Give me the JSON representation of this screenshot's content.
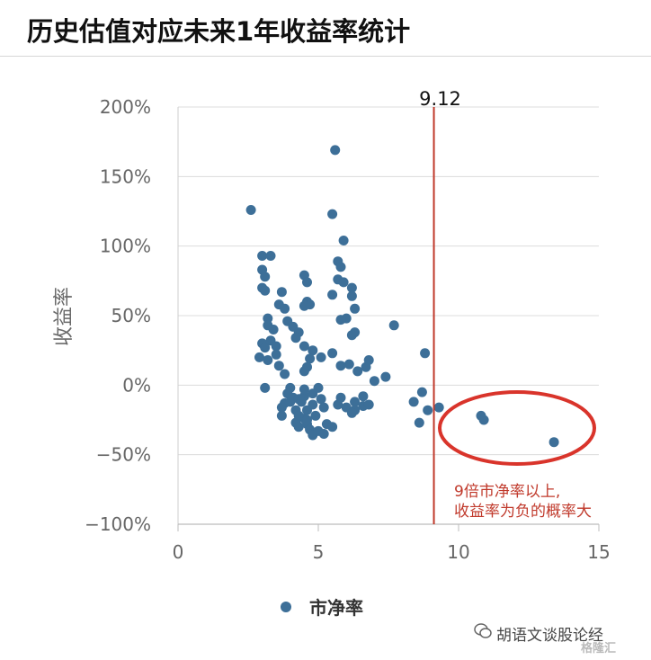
{
  "title": "历史估值对应未来1年收益率统计",
  "chart_data": {
    "type": "scatter",
    "title": "",
    "xlabel": "",
    "ylabel": "收益率",
    "xlim": [
      0,
      15
    ],
    "ylim": [
      -100,
      200
    ],
    "x_ticks": [
      "0",
      "5",
      "10",
      "15"
    ],
    "y_ticks": [
      "200%",
      "150%",
      "100%",
      "50%",
      "0%",
      "−50%",
      "−100%"
    ],
    "grid": "horizontal",
    "legend_position": "bottom",
    "series": [
      {
        "name": "市净率",
        "color": "#3d6f98",
        "points": [
          [
            2.6,
            126
          ],
          [
            5.6,
            169
          ],
          [
            5.5,
            123
          ],
          [
            5.9,
            104
          ],
          [
            3.0,
            93
          ],
          [
            3.3,
            93
          ],
          [
            3.0,
            83
          ],
          [
            3.1,
            78
          ],
          [
            3.0,
            70
          ],
          [
            3.1,
            68
          ],
          [
            3.7,
            67
          ],
          [
            3.6,
            58
          ],
          [
            3.8,
            55
          ],
          [
            3.2,
            48
          ],
          [
            3.2,
            43
          ],
          [
            3.4,
            40
          ],
          [
            3.9,
            46
          ],
          [
            4.1,
            42
          ],
          [
            4.3,
            38
          ],
          [
            4.2,
            34
          ],
          [
            3.0,
            30
          ],
          [
            3.1,
            27
          ],
          [
            3.3,
            32
          ],
          [
            3.5,
            28
          ],
          [
            3.5,
            22
          ],
          [
            2.9,
            20
          ],
          [
            3.2,
            18
          ],
          [
            3.6,
            14
          ],
          [
            3.8,
            8
          ],
          [
            4.5,
            79
          ],
          [
            4.6,
            74
          ],
          [
            4.6,
            60
          ],
          [
            4.7,
            58
          ],
          [
            4.5,
            57
          ],
          [
            5.7,
            89
          ],
          [
            5.8,
            85
          ],
          [
            5.7,
            76
          ],
          [
            5.9,
            74
          ],
          [
            6.2,
            70
          ],
          [
            6.2,
            64
          ],
          [
            6.3,
            55
          ],
          [
            6.0,
            48
          ],
          [
            5.8,
            47
          ],
          [
            6.3,
            38
          ],
          [
            6.2,
            36
          ],
          [
            5.5,
            65
          ],
          [
            4.5,
            28
          ],
          [
            4.8,
            25
          ],
          [
            4.7,
            19
          ],
          [
            4.6,
            13
          ],
          [
            4.5,
            10
          ],
          [
            5.1,
            20
          ],
          [
            5.5,
            23
          ],
          [
            5.8,
            14
          ],
          [
            6.1,
            15
          ],
          [
            6.4,
            10
          ],
          [
            6.7,
            13
          ],
          [
            6.8,
            18
          ],
          [
            7.0,
            3
          ],
          [
            7.4,
            6
          ],
          [
            7.7,
            43
          ],
          [
            8.8,
            23
          ],
          [
            4.0,
            -2
          ],
          [
            3.9,
            -6
          ],
          [
            4.1,
            -9
          ],
          [
            3.8,
            -13
          ],
          [
            3.7,
            -16
          ],
          [
            3.7,
            -22
          ],
          [
            4.2,
            -18
          ],
          [
            4.0,
            -12
          ],
          [
            4.3,
            -10
          ],
          [
            4.5,
            -8
          ],
          [
            4.5,
            -3
          ],
          [
            4.4,
            -12
          ],
          [
            4.6,
            -18
          ],
          [
            4.8,
            -6
          ],
          [
            4.8,
            -14
          ],
          [
            5.0,
            -2
          ],
          [
            5.1,
            -10
          ],
          [
            5.2,
            -16
          ],
          [
            4.2,
            -27
          ],
          [
            4.3,
            -30
          ],
          [
            4.5,
            -24
          ],
          [
            4.6,
            -28
          ],
          [
            4.7,
            -32
          ],
          [
            4.8,
            -36
          ],
          [
            5.0,
            -33
          ],
          [
            5.2,
            -35
          ],
          [
            5.3,
            -28
          ],
          [
            4.3,
            -22
          ],
          [
            4.9,
            -22
          ],
          [
            5.5,
            -30
          ],
          [
            4.6,
            -25
          ],
          [
            3.1,
            -2
          ],
          [
            5.7,
            -14
          ],
          [
            6.0,
            -16
          ],
          [
            6.3,
            -18
          ],
          [
            6.6,
            -15
          ],
          [
            6.8,
            -14
          ],
          [
            6.6,
            -8
          ],
          [
            5.8,
            -9
          ],
          [
            6.2,
            -20
          ],
          [
            6.3,
            -12
          ],
          [
            8.4,
            -12
          ],
          [
            8.7,
            -5
          ],
          [
            8.6,
            -27
          ],
          [
            8.9,
            -18
          ],
          [
            9.3,
            -16
          ],
          [
            10.8,
            -22
          ],
          [
            10.9,
            -25
          ],
          [
            13.4,
            -41
          ]
        ]
      }
    ],
    "annotations": [
      {
        "label": "9.12",
        "x": 9.12,
        "color": "#c0392b"
      },
      {
        "text_line1": "9倍市净率以上,",
        "text_line2": "收益率为负的概率大",
        "color": "#c0392b"
      }
    ]
  },
  "watermark": {
    "text": "胡语文谈股论经",
    "logo": "格隆汇"
  }
}
